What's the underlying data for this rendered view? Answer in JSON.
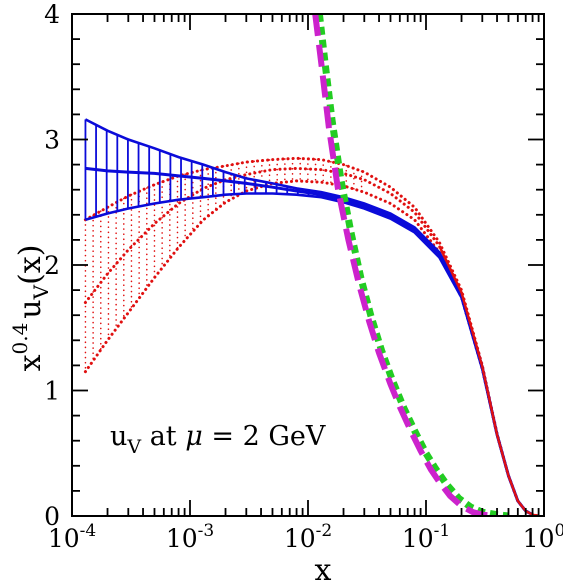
{
  "chart_data": {
    "type": "line",
    "xlabel": "x",
    "ylabel": {
      "base": "x",
      "exponent": "0.4",
      "func": "u",
      "sub": "V",
      "arg": "(x)"
    },
    "xscale": "log",
    "xlim": [
      0.0001,
      1
    ],
    "ylim": [
      0,
      4
    ],
    "grid": false,
    "xticks": [
      {
        "base": "10",
        "exp": "-4",
        "value": 0.0001
      },
      {
        "base": "10",
        "exp": "-3",
        "value": 0.001
      },
      {
        "base": "10",
        "exp": "-2",
        "value": 0.01
      },
      {
        "base": "10",
        "exp": "-1",
        "value": 0.1
      },
      {
        "base": "10",
        "exp": "0",
        "value": 1
      }
    ],
    "yticks": [
      "0",
      "1",
      "2",
      "3",
      "4"
    ],
    "annotation": {
      "func": "u",
      "sub": "V",
      "text": " at ",
      "mu": "μ",
      "rest": " = 2 GeV"
    },
    "colors": {
      "blue": "#0b0bd9",
      "red": "#e01010",
      "magenta": "#cc22cc",
      "green": "#22cc22"
    },
    "series": [
      {
        "style": "blue-band",
        "x": [
          0.00013,
          0.0002,
          0.0003,
          0.0005,
          0.0008,
          0.0013,
          0.002,
          0.003,
          0.005,
          0.008,
          0.013,
          0.02,
          0.03,
          0.05,
          0.08,
          0.13,
          0.2,
          0.3,
          0.4,
          0.5,
          0.6,
          0.7,
          0.8
        ],
        "central": [
          2.77,
          2.75,
          2.74,
          2.73,
          2.71,
          2.69,
          2.67,
          2.65,
          2.62,
          2.59,
          2.56,
          2.52,
          2.47,
          2.39,
          2.28,
          2.08,
          1.75,
          1.18,
          0.65,
          0.32,
          0.12,
          0.04,
          0.01
        ],
        "upper": [
          3.16,
          3.07,
          3.0,
          2.93,
          2.86,
          2.8,
          2.74,
          2.69,
          2.65,
          2.61,
          2.58,
          2.54,
          2.49,
          2.41,
          2.3,
          2.1,
          1.76,
          1.19,
          0.65,
          0.32,
          0.12,
          0.04,
          0.01
        ],
        "lower": [
          2.36,
          2.41,
          2.45,
          2.49,
          2.52,
          2.54,
          2.56,
          2.57,
          2.57,
          2.56,
          2.54,
          2.5,
          2.45,
          2.37,
          2.26,
          2.06,
          1.74,
          1.17,
          0.65,
          0.32,
          0.12,
          0.04,
          0.01
        ]
      },
      {
        "style": "red-dotted-band",
        "x": [
          0.00013,
          0.0002,
          0.0003,
          0.0005,
          0.0008,
          0.0013,
          0.002,
          0.003,
          0.005,
          0.008,
          0.013,
          0.02,
          0.03,
          0.05,
          0.08,
          0.13,
          0.2,
          0.3,
          0.4,
          0.5,
          0.6,
          0.7,
          0.8,
          0.9
        ],
        "upper": [
          2.36,
          2.46,
          2.55,
          2.64,
          2.71,
          2.76,
          2.79,
          2.82,
          2.84,
          2.85,
          2.84,
          2.8,
          2.74,
          2.62,
          2.46,
          2.18,
          1.8,
          1.2,
          0.66,
          0.32,
          0.12,
          0.04,
          0.01,
          0.0
        ],
        "middle": [
          1.7,
          1.93,
          2.12,
          2.33,
          2.49,
          2.61,
          2.68,
          2.72,
          2.76,
          2.77,
          2.76,
          2.73,
          2.68,
          2.57,
          2.42,
          2.15,
          1.78,
          1.19,
          0.65,
          0.32,
          0.12,
          0.04,
          0.01,
          0.0
        ],
        "lower": [
          1.15,
          1.4,
          1.62,
          1.9,
          2.14,
          2.36,
          2.5,
          2.59,
          2.65,
          2.67,
          2.66,
          2.63,
          2.58,
          2.49,
          2.36,
          2.1,
          1.74,
          1.17,
          0.65,
          0.32,
          0.12,
          0.04,
          0.01,
          0.0
        ]
      },
      {
        "style": "magenta-dashed",
        "x": [
          0.0115,
          0.013,
          0.015,
          0.018,
          0.022,
          0.027,
          0.033,
          0.04,
          0.05,
          0.06,
          0.075,
          0.09,
          0.11,
          0.13,
          0.16,
          0.2,
          0.25,
          0.3,
          0.4
        ],
        "y": [
          4.0,
          3.6,
          3.1,
          2.6,
          2.2,
          1.85,
          1.55,
          1.3,
          1.05,
          0.87,
          0.67,
          0.52,
          0.37,
          0.27,
          0.16,
          0.08,
          0.03,
          0.01,
          0.0
        ]
      },
      {
        "style": "green-dashed",
        "x": [
          0.0125,
          0.014,
          0.016,
          0.019,
          0.023,
          0.028,
          0.034,
          0.042,
          0.052,
          0.065,
          0.08,
          0.1,
          0.12,
          0.15,
          0.19,
          0.24,
          0.3,
          0.4,
          0.5
        ],
        "y": [
          4.0,
          3.6,
          3.15,
          2.68,
          2.27,
          1.9,
          1.6,
          1.32,
          1.08,
          0.86,
          0.68,
          0.5,
          0.38,
          0.25,
          0.14,
          0.07,
          0.03,
          0.01,
          0.0
        ]
      }
    ]
  }
}
